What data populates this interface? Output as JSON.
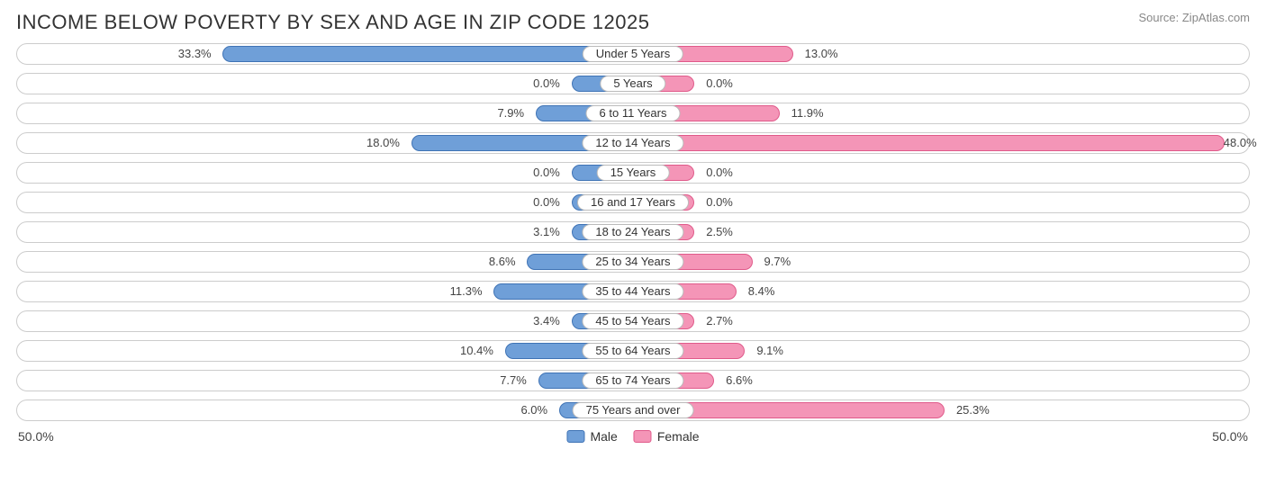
{
  "title": "INCOME BELOW POVERTY BY SEX AND AGE IN ZIP CODE 12025",
  "source": "Source: ZipAtlas.com",
  "axis_max": 50.0,
  "axis_label_left": "50.0%",
  "axis_label_right": "50.0%",
  "colors": {
    "male_fill": "#6f9fd8",
    "male_border": "#3f73b5",
    "female_fill": "#f495b7",
    "female_border": "#e05a8a",
    "track_border": "#cccccc",
    "background": "#ffffff",
    "text": "#333333"
  },
  "min_bar_pct": 10.0,
  "legend": {
    "male": "Male",
    "female": "Female"
  },
  "rows": [
    {
      "category": "Under 5 Years",
      "male": 33.3,
      "female": 13.0,
      "male_label": "33.3%",
      "female_label": "13.0%"
    },
    {
      "category": "5 Years",
      "male": 0.0,
      "female": 0.0,
      "male_label": "0.0%",
      "female_label": "0.0%"
    },
    {
      "category": "6 to 11 Years",
      "male": 7.9,
      "female": 11.9,
      "male_label": "7.9%",
      "female_label": "11.9%"
    },
    {
      "category": "12 to 14 Years",
      "male": 18.0,
      "female": 48.0,
      "male_label": "18.0%",
      "female_label": "48.0%"
    },
    {
      "category": "15 Years",
      "male": 0.0,
      "female": 0.0,
      "male_label": "0.0%",
      "female_label": "0.0%"
    },
    {
      "category": "16 and 17 Years",
      "male": 0.0,
      "female": 0.0,
      "male_label": "0.0%",
      "female_label": "0.0%"
    },
    {
      "category": "18 to 24 Years",
      "male": 3.1,
      "female": 2.5,
      "male_label": "3.1%",
      "female_label": "2.5%"
    },
    {
      "category": "25 to 34 Years",
      "male": 8.6,
      "female": 9.7,
      "male_label": "8.6%",
      "female_label": "9.7%"
    },
    {
      "category": "35 to 44 Years",
      "male": 11.3,
      "female": 8.4,
      "male_label": "11.3%",
      "female_label": "8.4%"
    },
    {
      "category": "45 to 54 Years",
      "male": 3.4,
      "female": 2.7,
      "male_label": "3.4%",
      "female_label": "2.7%"
    },
    {
      "category": "55 to 64 Years",
      "male": 10.4,
      "female": 9.1,
      "male_label": "10.4%",
      "female_label": "9.1%"
    },
    {
      "category": "65 to 74 Years",
      "male": 7.7,
      "female": 6.6,
      "male_label": "7.7%",
      "female_label": "6.6%"
    },
    {
      "category": "75 Years and over",
      "male": 6.0,
      "female": 25.3,
      "male_label": "6.0%",
      "female_label": "25.3%"
    }
  ]
}
